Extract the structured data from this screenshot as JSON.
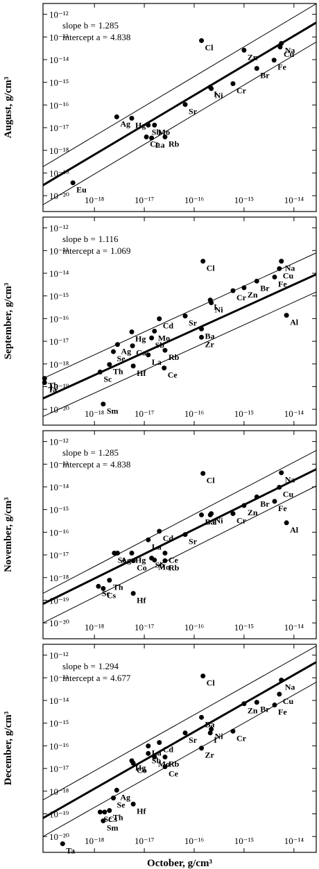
{
  "chart_data": [
    {
      "type": "scatter",
      "ylabel": "August, g/cm³",
      "slope_label": "slope b =",
      "slope": 1.285,
      "intercept_label": "intercept a =",
      "intercept": 4.838,
      "xscale": "log",
      "yscale": "log",
      "xlim": [
        9.3e-20,
        2.8e-14
      ],
      "ylim": [
        2e-21,
        3e-12
      ],
      "color": "#000000",
      "xticks": [
        {
          "value": 1e-18,
          "label": "10⁻¹⁸"
        },
        {
          "value": 1e-17,
          "label": "10⁻¹⁷"
        },
        {
          "value": 1e-16,
          "label": "10⁻¹⁶"
        },
        {
          "value": 1e-15,
          "label": "10⁻¹⁵"
        },
        {
          "value": 1e-14,
          "label": "10⁻¹⁴"
        }
      ],
      "yticks": [
        {
          "value": 1e-12,
          "label": "10⁻¹²"
        },
        {
          "value": 1e-13,
          "label": "10⁻¹³"
        },
        {
          "value": 1e-14,
          "label": "10⁻¹⁴"
        },
        {
          "value": 1e-15,
          "label": "10⁻¹⁵"
        },
        {
          "value": 1e-16,
          "label": "10⁻¹⁶"
        },
        {
          "value": 1e-17,
          "label": "10⁻¹⁷"
        },
        {
          "value": 1e-18,
          "label": "10⁻¹⁸"
        },
        {
          "value": 1e-19,
          "label": "10⁻¹⁹"
        },
        {
          "value": 1e-20,
          "label": "10⁻²⁰"
        }
      ],
      "point_labels": [
        "Eu",
        "Ag",
        "Hg",
        "Sb",
        "Mo",
        "Co",
        "La",
        "Rb",
        "Sr",
        "Cl",
        "I",
        "Ni",
        "Zn",
        "Cr",
        "Br",
        "Fe",
        "Na",
        "Cu"
      ],
      "x": [
        3.7e-19,
        2.8e-18,
        5.6e-18,
        1.2e-17,
        1.6e-17,
        1.1e-17,
        1.4e-17,
        2.6e-17,
        6.6e-17,
        1.4e-16,
        2.1e-16,
        2.2e-16,
        1e-15,
        6e-16,
        1.8e-15,
        4e-15,
        5.6e-15,
        5.3e-15
      ],
      "values": [
        3.7e-20,
        3e-17,
        2.6e-17,
        1.3e-17,
        1.3e-17,
        3.9e-18,
        3.5e-18,
        3.9e-18,
        1.05e-16,
        6.9e-14,
        6.2e-16,
        5.3e-16,
        2.6e-14,
        8.7e-16,
        4.1e-15,
        9.5e-15,
        5.2e-14,
        3.6e-14
      ],
      "lines": [
        {
          "x": [
            9.3e-20,
            2.8e-14
          ],
          "values": [
            2.9e-20,
            4.3e-13
          ]
        },
        {
          "x": [
            9.3e-20,
            2.8e-14
          ],
          "values": [
            1.9e-19,
            2.9e-12
          ]
        },
        {
          "x": [
            9.3e-20,
            2.8e-14
          ],
          "values": [
            4e-21,
            6e-14
          ]
        }
      ]
    },
    {
      "type": "scatter",
      "ylabel": "September, g/cm³",
      "slope_label": "slope b =",
      "slope": 1.116,
      "intercept_label": "intercept a =",
      "intercept": 1.069,
      "xscale": "log",
      "yscale": "log",
      "xlim": [
        9.3e-20,
        2.8e-14
      ],
      "ylim": [
        2e-21,
        3e-12
      ],
      "color": "#000000",
      "xticks": [
        {
          "value": 1e-18,
          "label": "10⁻¹⁸"
        },
        {
          "value": 1e-17,
          "label": "10⁻¹⁷"
        },
        {
          "value": 1e-16,
          "label": "10⁻¹⁶"
        },
        {
          "value": 1e-15,
          "label": "10⁻¹⁵"
        },
        {
          "value": 1e-14,
          "label": "10⁻¹⁴"
        }
      ],
      "yticks": [
        {
          "value": 1e-12,
          "label": "10⁻¹²"
        },
        {
          "value": 1e-13,
          "label": "10⁻¹³"
        },
        {
          "value": 1e-14,
          "label": "10⁻¹⁴"
        },
        {
          "value": 1e-15,
          "label": "10⁻¹⁵"
        },
        {
          "value": 1e-16,
          "label": "10⁻¹⁶"
        },
        {
          "value": 1e-17,
          "label": "10⁻¹⁷"
        },
        {
          "value": 1e-18,
          "label": "10⁻¹⁸"
        },
        {
          "value": 1e-19,
          "label": "10⁻¹⁹"
        },
        {
          "value": 1e-20,
          "label": "10⁻²⁰"
        }
      ],
      "point_labels": [
        "Tb",
        "Ta",
        "Sm",
        "Sc",
        "Th",
        "Se",
        "Ag",
        "Co",
        "Hg",
        "Hf",
        "La",
        "Sb",
        "Cd",
        "Mo",
        "Ce",
        "Rb",
        "Sr",
        "Ba",
        "Zr",
        "Cl",
        "I",
        "Ni",
        "Cr",
        "Zn",
        "Br",
        "Fe",
        "Cu",
        "Na",
        "Al"
      ],
      "x": [
        1e-19,
        1e-19,
        1.5e-18,
        1.3e-18,
        2e-18,
        2.4e-18,
        2.9e-18,
        5.8e-18,
        5.6e-18,
        6e-18,
        1.2e-17,
        1.4e-17,
        2e-17,
        1.6e-17,
        2.5e-17,
        2.6e-17,
        6.6e-17,
        1.4e-16,
        1.4e-16,
        1.5e-16,
        2.1e-16,
        2.2e-16,
        6e-16,
        1e-15,
        1.8e-15,
        4.1e-15,
        5.1e-15,
        5.6e-15,
        7.1e-15
      ],
      "values": [
        2.3e-19,
        1.5e-19,
        1.7e-20,
        4.4e-19,
        9.4e-19,
        3.5e-18,
        7.2e-18,
        6.3e-18,
        2.6e-17,
        8.1e-19,
        2.5e-18,
        1.4e-17,
        9.8e-17,
        2.8e-17,
        6.6e-19,
        4e-18,
        1.3e-16,
        3.5e-17,
        1.5e-17,
        3.4e-14,
        6.6e-16,
        5e-16,
        1.7e-15,
        2.3e-15,
        4.5e-15,
        6.8e-15,
        1.6e-14,
        3.4e-14,
        1.4e-16
      ],
      "lines": [
        {
          "x": [
            9.3e-20,
            2.8e-14
          ],
          "values": [
            3e-20,
            8.9e-15
          ]
        },
        {
          "x": [
            9.3e-20,
            2.8e-14
          ],
          "values": [
            2.3e-19,
            7.9e-14
          ]
        },
        {
          "x": [
            9.3e-20,
            2.8e-14
          ],
          "values": [
            4.8e-21,
            1.5e-15
          ]
        }
      ]
    },
    {
      "type": "scatter",
      "ylabel": "November, g/cm³",
      "slope_label": "slope b =",
      "slope": 1.285,
      "intercept_label": "intercept a =",
      "intercept": 4.838,
      "xscale": "log",
      "yscale": "log",
      "xlim": [
        9.3e-20,
        2.8e-14
      ],
      "ylim": [
        2e-21,
        3e-12
      ],
      "color": "#000000",
      "xticks": [
        {
          "value": 1e-18,
          "label": "10⁻¹⁸"
        },
        {
          "value": 1e-17,
          "label": "10⁻¹⁷"
        },
        {
          "value": 1e-16,
          "label": "10⁻¹⁶"
        },
        {
          "value": 1e-15,
          "label": "10⁻¹⁵"
        },
        {
          "value": 1e-14,
          "label": "10⁻¹⁴"
        }
      ],
      "yticks": [
        {
          "value": 1e-12,
          "label": "10⁻¹²"
        },
        {
          "value": 1e-13,
          "label": "10⁻¹³"
        },
        {
          "value": 1e-14,
          "label": "10⁻¹⁴"
        },
        {
          "value": 1e-15,
          "label": "10⁻¹⁵"
        },
        {
          "value": 1e-16,
          "label": "10⁻¹⁶"
        },
        {
          "value": 1e-17,
          "label": "10⁻¹⁷"
        },
        {
          "value": 1e-18,
          "label": "10⁻¹⁸"
        },
        {
          "value": 1e-19,
          "label": "10⁻¹⁹"
        },
        {
          "value": 1e-20,
          "label": "10⁻²⁰"
        }
      ],
      "point_labels": [
        "Sc",
        "Cs",
        "Th",
        "Hf",
        "Se",
        "Ag",
        "Hg",
        "Co",
        "Sb",
        "Mo",
        "La",
        "Cd",
        "Ce",
        "Rb",
        "Sr",
        "Ba",
        "Cl",
        "I",
        "Ni",
        "Cr",
        "Zn",
        "Br",
        "Fe",
        "Cu",
        "Na",
        "Al"
      ],
      "x": [
        1.2e-18,
        1.5e-18,
        2e-18,
        6e-18,
        2.5e-18,
        2.9e-18,
        5.6e-18,
        6e-18,
        1.4e-17,
        1.6e-17,
        1.2e-17,
        2e-17,
        2.6e-17,
        2.6e-17,
        6.6e-17,
        1.4e-16,
        1.5e-16,
        2.1e-16,
        2.2e-16,
        6e-16,
        1e-15,
        1.8e-15,
        4.1e-15,
        5.1e-15,
        5.6e-15,
        7.1e-15
      ],
      "values": [
        4.1e-19,
        3.3e-19,
        7.6e-19,
        2e-19,
        1.2e-17,
        1.2e-17,
        1.2e-17,
        5.5e-18,
        7.2e-18,
        5.9e-18,
        4.6e-17,
        1.1e-16,
        1.2e-17,
        5.5e-18,
        7.9e-17,
        5.8e-16,
        3.9e-14,
        5.8e-16,
        6.6e-16,
        6.6e-16,
        1.5e-15,
        3.6e-15,
        2.3e-15,
        9.6e-15,
        4.2e-14,
        2.6e-16
      ],
      "lines": [
        {
          "x": [
            9.3e-20,
            2.8e-14
          ],
          "values": [
            6.9e-20,
            6e-14
          ]
        },
        {
          "x": [
            9.3e-20,
            2.8e-14
          ],
          "values": [
            2e-19,
            4e-13
          ]
        },
        {
          "x": [
            9.3e-20,
            2.8e-14
          ],
          "values": [
            1e-20,
            1.1e-14
          ]
        }
      ]
    },
    {
      "type": "scatter",
      "ylabel": "December, g/cm³",
      "xlabel": "October, g/cm³",
      "slope_label": "slope b =",
      "slope": 1.294,
      "intercept_label": "intercept a =",
      "intercept": 4.677,
      "xscale": "log",
      "yscale": "log",
      "xlim": [
        9.3e-20,
        2.8e-14
      ],
      "ylim": [
        2e-21,
        3e-12
      ],
      "color": "#000000",
      "xticks": [
        {
          "value": 1e-18,
          "label": "10⁻¹⁸"
        },
        {
          "value": 1e-17,
          "label": "10⁻¹⁷"
        },
        {
          "value": 1e-16,
          "label": "10⁻¹⁶"
        },
        {
          "value": 1e-15,
          "label": "10⁻¹⁵"
        },
        {
          "value": 1e-14,
          "label": "10⁻¹⁴"
        }
      ],
      "yticks": [
        {
          "value": 1e-12,
          "label": "10⁻¹²"
        },
        {
          "value": 1e-13,
          "label": "10⁻¹³"
        },
        {
          "value": 1e-14,
          "label": "10⁻¹⁴"
        },
        {
          "value": 1e-15,
          "label": "10⁻¹⁵"
        },
        {
          "value": 1e-16,
          "label": "10⁻¹⁶"
        },
        {
          "value": 1e-17,
          "label": "10⁻¹⁷"
        },
        {
          "value": 1e-18,
          "label": "10⁻¹⁸"
        },
        {
          "value": 1e-19,
          "label": "10⁻¹⁹"
        },
        {
          "value": 1e-20,
          "label": "10⁻²⁰"
        }
      ],
      "point_labels": [
        "Ta",
        "Sm",
        "Sc",
        "Cs",
        "Th",
        "Se",
        "Ag",
        "Hf",
        "Hg",
        "Co",
        "Sb",
        "La",
        "Mo",
        "Cd",
        "Ce",
        "Rb",
        "Sr",
        "Ba",
        "Zr",
        "Cl",
        "I",
        "Ni",
        "Cr",
        "Zn",
        "Br",
        "Fe",
        "Cu",
        "Na"
      ],
      "x": [
        2.3e-19,
        1.5e-18,
        1.3e-18,
        1.6e-18,
        2e-18,
        2.4e-18,
        2.8e-18,
        6e-18,
        5.6e-18,
        6e-18,
        1.2e-17,
        1.2e-17,
        1.6e-17,
        2e-17,
        2.6e-17,
        2.6e-17,
        6.6e-17,
        1.4e-16,
        1.4e-16,
        1.5e-16,
        2.1e-16,
        2.2e-16,
        6e-16,
        1e-15,
        1.8e-15,
        4.1e-15,
        5.1e-15,
        5.6e-15
      ],
      "values": [
        4.8e-21,
        4.9e-20,
        1.2e-19,
        1.2e-19,
        1.4e-19,
        5e-19,
        1.1e-18,
        2.7e-19,
        2.2e-17,
        1.7e-17,
        4.6e-17,
        9.8e-17,
        3.2e-17,
        1.4e-16,
        1.2e-17,
        3.2e-17,
        3.7e-16,
        1.8e-15,
        7.9e-17,
        1.2e-13,
        3.7e-16,
        5.4e-16,
        4.4e-16,
        7.2e-15,
        8.3e-15,
        6.3e-15,
        1.9e-14,
        7.9e-14
      ],
      "lines": [
        {
          "x": [
            9.3e-20,
            2.8e-14
          ],
          "values": [
            6.5e-20,
            4.9e-13
          ]
        },
        {
          "x": [
            9.3e-20,
            2.8e-14
          ],
          "values": [
            4.1e-19,
            2.5e-12
          ]
        },
        {
          "x": [
            9.3e-20,
            2.8e-14
          ],
          "values": [
            1e-20,
            6.4e-14
          ]
        }
      ]
    }
  ]
}
